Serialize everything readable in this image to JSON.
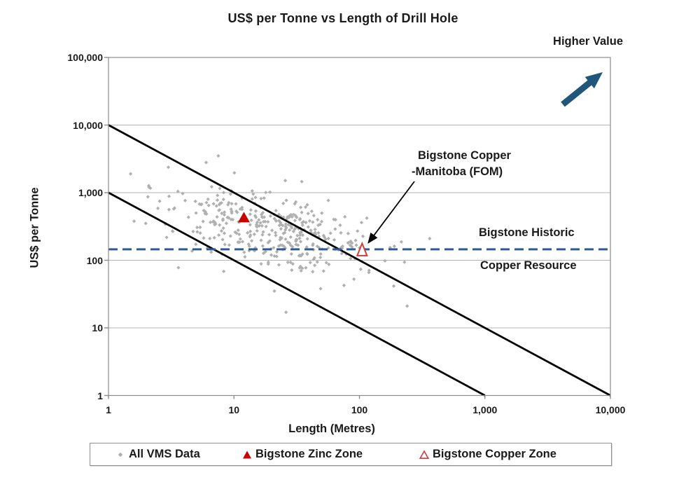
{
  "chart_data": {
    "type": "scatter",
    "title": "US$ per Tonne vs Length of Drill Hole",
    "xlabel": "Length (Metres)",
    "ylabel": "US$ per Tonne",
    "x_scale": "log",
    "y_scale": "log",
    "xlim": [
      1,
      10000
    ],
    "ylim": [
      1,
      100000
    ],
    "grid": "horizontal-decades-only",
    "x_ticks": [
      {
        "value": 1,
        "label": "1"
      },
      {
        "value": 10,
        "label": "10"
      },
      {
        "value": 100,
        "label": "100"
      },
      {
        "value": 1000,
        "label": "1,000"
      },
      {
        "value": 10000,
        "label": "10,000"
      }
    ],
    "y_ticks": [
      {
        "value": 1,
        "label": "1"
      },
      {
        "value": 10,
        "label": "10"
      },
      {
        "value": 100,
        "label": "100"
      },
      {
        "value": 1000,
        "label": "1,000"
      },
      {
        "value": 10000,
        "label": "10,000"
      },
      {
        "value": 100000,
        "label": "100,000"
      }
    ],
    "series": [
      {
        "name": "All VMS Data",
        "marker": "diamond",
        "color": "#b0b0b0",
        "cloud": {
          "seed": 1337,
          "count": 380,
          "log_x_mean": 1.3,
          "log_x_sd": 0.42,
          "log_x_range": [
            0.15,
            2.56
          ],
          "log_y_center": 2.45,
          "log_y_slope_vs_log_x": -0.38,
          "log_y_resid_sd": 0.28,
          "log_y_range": [
            1.32,
            3.58
          ]
        },
        "extra_points": [
          {
            "x": 7.5,
            "y": 3500
          },
          {
            "x": 6,
            "y": 2800
          },
          {
            "x": 1.5,
            "y": 1900
          },
          {
            "x": 21,
            "y": 35
          },
          {
            "x": 26,
            "y": 17
          },
          {
            "x": 240,
            "y": 21
          },
          {
            "x": 49,
            "y": 38
          }
        ]
      },
      {
        "name": "Bigstone Zinc Zone",
        "marker": "triangle-filled",
        "color": "#cc0000",
        "points": [
          {
            "x": 12,
            "y": 430
          }
        ]
      },
      {
        "name": "Bigstone Copper Zone",
        "marker": "triangle-open",
        "color": "#d23b3b",
        "points": [
          {
            "x": 105,
            "y": 140
          }
        ]
      }
    ],
    "reference_lines": [
      {
        "name": "upper-envelope",
        "style": "solid",
        "color": "#000000",
        "from": {
          "x": 1,
          "y": 10000
        },
        "to": {
          "x": 10000,
          "y": 1
        }
      },
      {
        "name": "lower-envelope",
        "style": "solid",
        "color": "#000000",
        "from": {
          "x": 1,
          "y": 1000
        },
        "to": {
          "x": 1000,
          "y": 1
        }
      },
      {
        "name": "bigstone-historic-copper-resource",
        "style": "dashed",
        "color": "#2f5b94",
        "y": 145
      }
    ],
    "annotations": [
      {
        "text_lines": [
          "Bigstone Copper",
          "-Manitoba (FOM)"
        ],
        "points_to_series": "Bigstone Copper Zone"
      },
      {
        "text_lines": [
          "Bigstone Historic",
          "Copper Resource"
        ],
        "refers_to": "dashed reference line"
      },
      {
        "text": "Higher Value",
        "arrow_direction": "up-right"
      }
    ],
    "legend_position": "bottom"
  },
  "legend": {
    "items": [
      {
        "label": "All VMS Data",
        "marker": "diamond",
        "color": "#b0b0b0"
      },
      {
        "label": "Bigstone Zinc Zone",
        "marker": "triangle-filled",
        "color": "#cc0000"
      },
      {
        "label": "Bigstone Copper Zone",
        "marker": "triangle-open",
        "color": "#d23b3b"
      }
    ]
  },
  "colors": {
    "scatter": "#b0b0b0",
    "gridline": "#b3b3b3",
    "axis_border": "#8c8c8c",
    "tick_mark": "#8c8c8c",
    "envelope_line": "#000000",
    "dashed_line": "#2f5b94",
    "zinc_marker": "#cc0000",
    "copper_marker_outline": "#d23b3b",
    "annotation_arrow": "#000000",
    "higher_value_arrow": "#1f567a",
    "text": "#1a1a1a"
  }
}
